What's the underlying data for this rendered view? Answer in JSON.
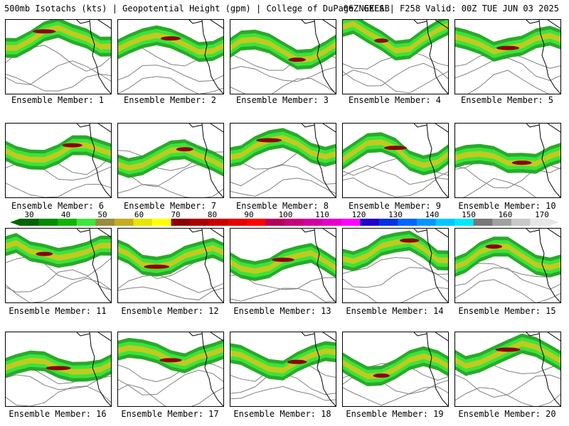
{
  "header": {
    "title_left": "500mb Isotachs (kts) | Geopotential Height (gpm) | College of DuPage NEXLAB",
    "title_right": "06Z GEFS | F258 Valid: 00Z TUE JUN 03 2025"
  },
  "colorbar": {
    "labels": [
      "30",
      "40",
      "50",
      "60",
      "70",
      "80",
      "90",
      "100",
      "110",
      "120",
      "130",
      "140",
      "150",
      "160",
      "170"
    ],
    "colors": [
      "#006400",
      "#008c00",
      "#10b400",
      "#3ce63c",
      "#9b8c3c",
      "#c8aa1e",
      "#e6e600",
      "#ffff00",
      "#8c0000",
      "#aa0000",
      "#c80000",
      "#e60000",
      "#ff0000",
      "#b4005a",
      "#c8007d",
      "#d200a0",
      "#e600c8",
      "#ff00ff",
      "#1e00c8",
      "#0032e6",
      "#0064ff",
      "#0096ff",
      "#00c8ff",
      "#00e6ff",
      "#787878",
      "#a0a0a0",
      "#c8c8c8",
      "#e6e6e6"
    ]
  },
  "members": [
    {
      "label": "Ensemble Member: 1"
    },
    {
      "label": "Ensemble Member: 2"
    },
    {
      "label": "Ensemble Member: 3"
    },
    {
      "label": "Ensemble Member: 4"
    },
    {
      "label": "Ensemble Member: 5"
    },
    {
      "label": "Ensemble Member: 6"
    },
    {
      "label": "Ensemble Member: 7"
    },
    {
      "label": "Ensemble Member: 8"
    },
    {
      "label": "Ensemble Member: 9"
    },
    {
      "label": "Ensemble Member: 10"
    },
    {
      "label": "Ensemble Member: 11"
    },
    {
      "label": "Ensemble Member: 12"
    },
    {
      "label": "Ensemble Member: 13"
    },
    {
      "label": "Ensemble Member: 14"
    },
    {
      "label": "Ensemble Member: 15"
    },
    {
      "label": "Ensemble Member: 16"
    },
    {
      "label": "Ensemble Member: 17"
    },
    {
      "label": "Ensemble Member: 18"
    },
    {
      "label": "Ensemble Member: 19"
    },
    {
      "label": "Ensemble Member: 20"
    }
  ],
  "colors": {
    "jet_outer": "#1fa51f",
    "jet_mid": "#3ce63c",
    "jet_core_yellow": "#c8c81e",
    "jet_core_max": "#8c0000",
    "height_contour": "#808080",
    "coastline": "#000000"
  }
}
